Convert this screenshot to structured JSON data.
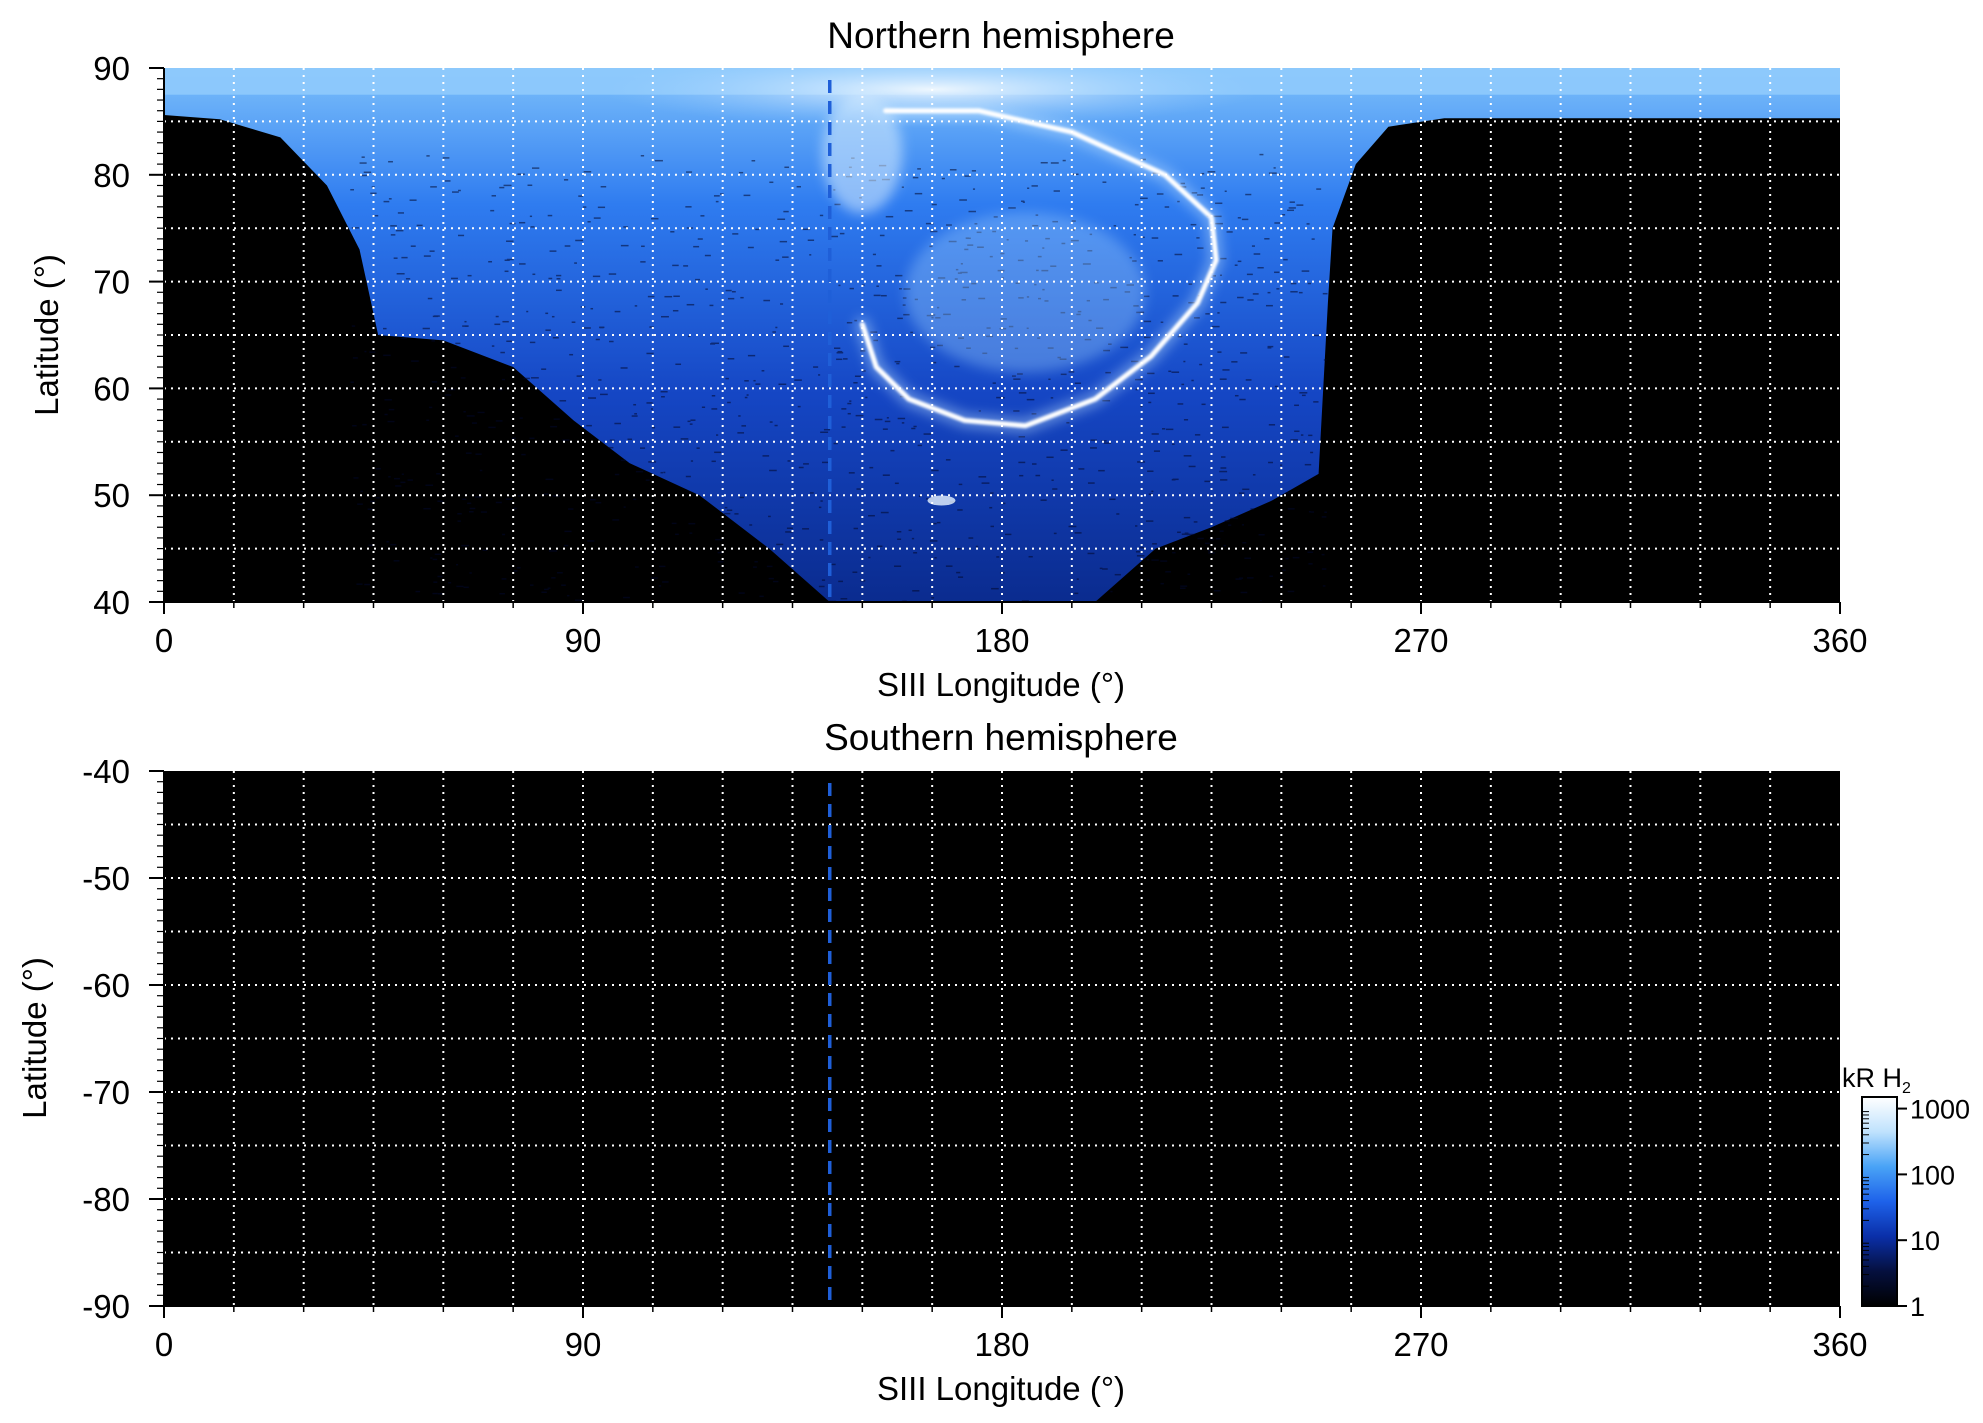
{
  "colors": {
    "background": "#000000",
    "grid": "#ffffff",
    "marker_line": "#1f5fd8",
    "colormap": [
      "#000000",
      "#05103f",
      "#0a2fa8",
      "#1e62ea",
      "#49a3f6",
      "#bfe2fd",
      "#ffffff"
    ]
  },
  "chart_data": [
    {
      "type": "heatmap",
      "title": "Northern hemisphere",
      "xlabel": "SIII Longitude (°)",
      "ylabel": "Latitude (°)",
      "xlim": [
        0,
        360
      ],
      "ylim": [
        40,
        90
      ],
      "x_ticks": [
        0,
        90,
        180,
        270,
        360
      ],
      "y_ticks": [
        40,
        50,
        60,
        70,
        80,
        90
      ],
      "x_grid_step": 15,
      "y_grid_step": 5,
      "grid": true,
      "marker_longitude": 143,
      "observed_region_lower_boundary": [
        {
          "lon": 12,
          "lat": 85.2
        },
        {
          "lon": 25,
          "lat": 83.5
        },
        {
          "lon": 35,
          "lat": 79
        },
        {
          "lon": 42,
          "lat": 73
        },
        {
          "lon": 46,
          "lat": 65
        },
        {
          "lon": 60,
          "lat": 64.5
        },
        {
          "lon": 75,
          "lat": 62
        },
        {
          "lon": 88,
          "lat": 57
        },
        {
          "lon": 100,
          "lat": 53
        },
        {
          "lon": 115,
          "lat": 50
        },
        {
          "lon": 130,
          "lat": 45
        },
        {
          "lon": 143,
          "lat": 40
        },
        {
          "lon": 175,
          "lat": 39
        },
        {
          "lon": 200,
          "lat": 40
        },
        {
          "lon": 213,
          "lat": 45
        },
        {
          "lon": 225,
          "lat": 47
        },
        {
          "lon": 238,
          "lat": 49.5
        },
        {
          "lon": 248,
          "lat": 52
        },
        {
          "lon": 249,
          "lat": 60
        },
        {
          "lon": 250,
          "lat": 68
        },
        {
          "lon": 251,
          "lat": 75
        },
        {
          "lon": 256,
          "lat": 81
        },
        {
          "lon": 263,
          "lat": 84.5
        },
        {
          "lon": 275,
          "lat": 85.3
        },
        {
          "lon": 360,
          "lat": 85.3
        }
      ],
      "main_emission_oval": [
        {
          "lon": 150,
          "lat": 66
        },
        {
          "lon": 153,
          "lat": 62
        },
        {
          "lon": 160,
          "lat": 59
        },
        {
          "lon": 172,
          "lat": 57
        },
        {
          "lon": 185,
          "lat": 56.5
        },
        {
          "lon": 200,
          "lat": 59
        },
        {
          "lon": 212,
          "lat": 63
        },
        {
          "lon": 222,
          "lat": 68
        },
        {
          "lon": 226,
          "lat": 72
        },
        {
          "lon": 225,
          "lat": 76
        },
        {
          "lon": 215,
          "lat": 80
        },
        {
          "lon": 195,
          "lat": 84
        },
        {
          "lon": 175,
          "lat": 86
        },
        {
          "lon": 155,
          "lat": 86
        }
      ]
    },
    {
      "type": "heatmap",
      "title": "Southern hemisphere",
      "xlabel": "SIII Longitude (°)",
      "ylabel": "Latitude (°)",
      "xlim": [
        0,
        360
      ],
      "ylim": [
        -90,
        -40
      ],
      "x_ticks": [
        0,
        90,
        180,
        270,
        360
      ],
      "y_ticks": [
        -90,
        -80,
        -70,
        -60,
        -50,
        -40
      ],
      "x_grid_step": 15,
      "y_grid_step": 5,
      "grid": true,
      "marker_longitude": 143
    }
  ],
  "colorbar": {
    "label": "kR H",
    "label_subscript": "2",
    "scale": "log",
    "range": [
      1,
      1500
    ],
    "ticks": [
      1,
      10,
      100,
      1000
    ]
  }
}
